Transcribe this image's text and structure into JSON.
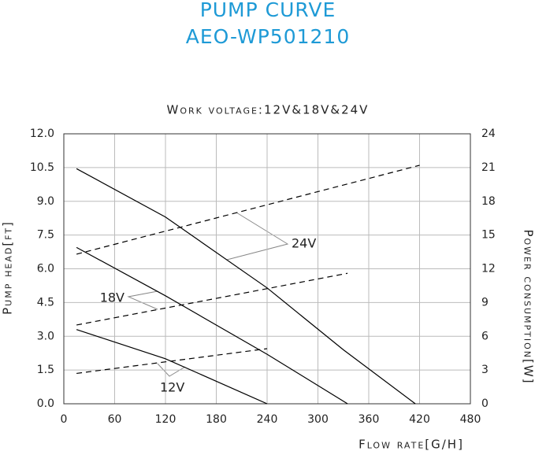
{
  "chart_data": {
    "type": "line",
    "title": "PUMP CURVE",
    "subtitle": "AEO-WP501210",
    "caption": "Work voltage:12V&18V&24V",
    "xlabel": "Flow rate[G/H]",
    "ylabel": "Pump head[ft]",
    "y2label": "Power consumption[W]",
    "xlim": [
      0,
      480
    ],
    "xticks": [
      0,
      60,
      120,
      180,
      240,
      300,
      360,
      420,
      480
    ],
    "ylim": [
      0,
      12
    ],
    "yticks": [
      {
        "value": 0,
        "label": "0.0"
      },
      1.5,
      {
        "value": 3,
        "label": "3.0"
      },
      4.5,
      {
        "value": 6,
        "label": "6.0"
      },
      7.5,
      {
        "value": 9,
        "label": "9.0"
      },
      10.5,
      {
        "value": 12,
        "label": "12.0"
      }
    ],
    "y2lim": [
      0,
      24
    ],
    "y2ticks": [
      0,
      3,
      6,
      9,
      12,
      15,
      18,
      21,
      24
    ],
    "grid": true,
    "annotations": [
      "24V",
      "18V",
      "12V"
    ],
    "series": [
      {
        "color": "#000000",
        "dashed": false,
        "x": [
          15,
          120,
          240,
          330,
          415
        ],
        "values": [
          10.45,
          8.3,
          5.15,
          2.4,
          0
        ]
      },
      {
        "color": "#000000",
        "dashed": false,
        "x": [
          15,
          120,
          240,
          335
        ],
        "values": [
          6.95,
          4.8,
          2.2,
          0
        ]
      },
      {
        "color": "#000000",
        "dashed": false,
        "x": [
          15,
          120,
          240
        ],
        "values": [
          3.3,
          2.0,
          0
        ]
      },
      {
        "color": "#000000",
        "dashed": true,
        "axis": "y2",
        "x": [
          15,
          420
        ],
        "values": [
          13.3,
          21.2
        ]
      },
      {
        "color": "#000000",
        "dashed": true,
        "axis": "y2",
        "x": [
          15,
          335
        ],
        "values": [
          7.0,
          11.6
        ]
      },
      {
        "color": "#000000",
        "dashed": true,
        "axis": "y2",
        "x": [
          15,
          240
        ],
        "values": [
          2.7,
          4.9
        ]
      }
    ]
  }
}
